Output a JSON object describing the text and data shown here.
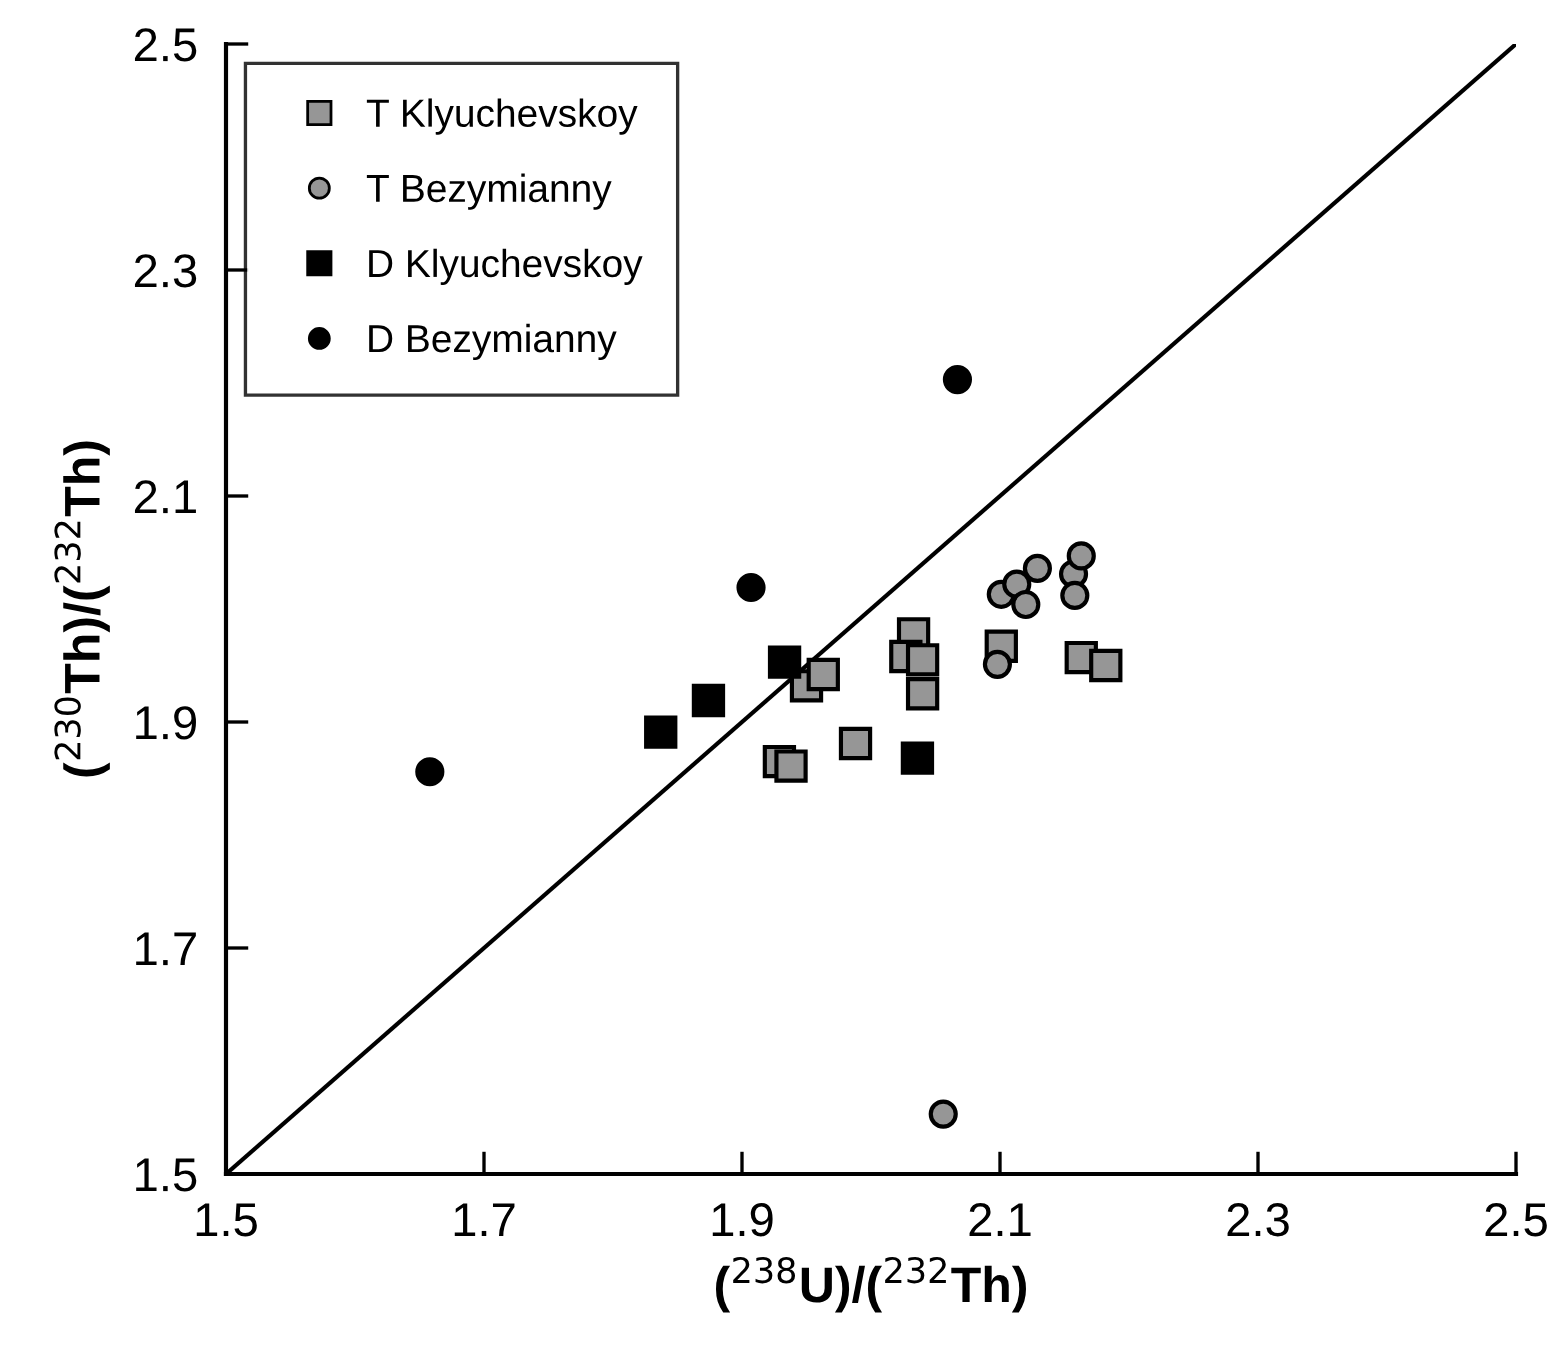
{
  "chart_data": {
    "type": "scatter",
    "xlabel": "($^{238}$U)/($^{232}$Th)",
    "ylabel": "($^{230}$Th)/($^{232}$Th)",
    "xlim": [
      1.5,
      2.5
    ],
    "ylim": [
      1.5,
      2.5
    ],
    "xticks": [
      1.5,
      1.7,
      1.9,
      2.1,
      2.3,
      2.5
    ],
    "yticks": [
      1.5,
      1.7,
      1.9,
      2.1,
      2.3,
      2.5
    ],
    "grid": false,
    "legend": "top left",
    "series": [
      {
        "name": "T Klyuchevskoy",
        "color": "#969696",
        "marker": "square",
        "x": [
          1.929,
          1.938,
          1.988,
          1.95,
          1.963,
          2.033,
          2.027,
          2.04,
          2.04,
          2.101,
          2.163,
          2.182
        ],
        "values": [
          1.865,
          1.861,
          1.881,
          1.932,
          1.942,
          1.978,
          1.958,
          1.955,
          1.925,
          1.967,
          1.957,
          1.95
        ]
      },
      {
        "name": "T Bezymianny",
        "color": "#969696",
        "marker": "circle",
        "x": [
          2.098,
          2.101,
          2.113,
          2.12,
          2.129,
          2.157,
          2.163,
          2.158,
          2.056
        ],
        "values": [
          1.951,
          2.013,
          2.022,
          2.004,
          2.036,
          2.031,
          2.047,
          2.012,
          1.553
        ]
      },
      {
        "name": "D Klyuchevskoy",
        "color": "#000000",
        "marker": "square",
        "x": [
          1.837,
          1.874,
          1.933,
          2.036
        ],
        "values": [
          1.891,
          1.919,
          1.953,
          1.868
        ]
      },
      {
        "name": "D Bezymianny",
        "color": "#000000",
        "marker": "circle",
        "x": [
          1.658,
          1.907,
          2.067
        ],
        "values": [
          1.856,
          2.019,
          2.203
        ]
      },
      {
        "type": "line",
        "color": "#000000",
        "marker": "none",
        "x": [
          1.5,
          2.5
        ],
        "values": [
          1.5,
          2.5
        ]
      }
    ]
  }
}
